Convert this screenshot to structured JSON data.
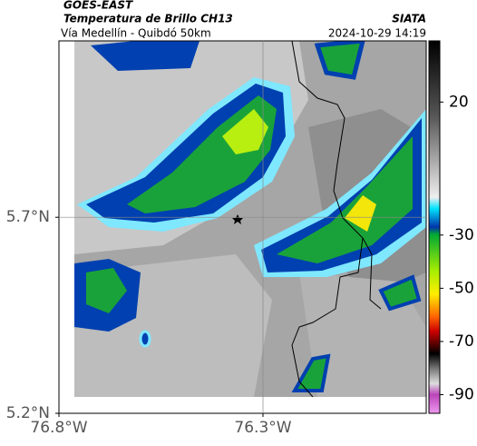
{
  "header": {
    "title": "GOES-EAST",
    "subtitle": "Temperatura de Brillo CH13",
    "source": "SIATA",
    "route": "Vía Medellín - Quibdó 50km",
    "datetime": "2024-10-29 14:19"
  },
  "map": {
    "latlim": [
      5.2,
      6.15
    ],
    "lonlim": [
      -76.8,
      -75.9
    ],
    "lat_ticks": [
      {
        "value": 5.7,
        "label": "5.7°N"
      },
      {
        "value": 5.2,
        "label": "5.2°N"
      }
    ],
    "lon_ticks": [
      {
        "value": -76.8,
        "label": "76.8°W"
      },
      {
        "value": -76.3,
        "label": "76.3°W"
      }
    ],
    "grid": true
  },
  "colorbar": {
    "lim": [
      43,
      -97
    ],
    "ticks": [
      20,
      -30,
      -50,
      -70,
      -90
    ]
  }
}
